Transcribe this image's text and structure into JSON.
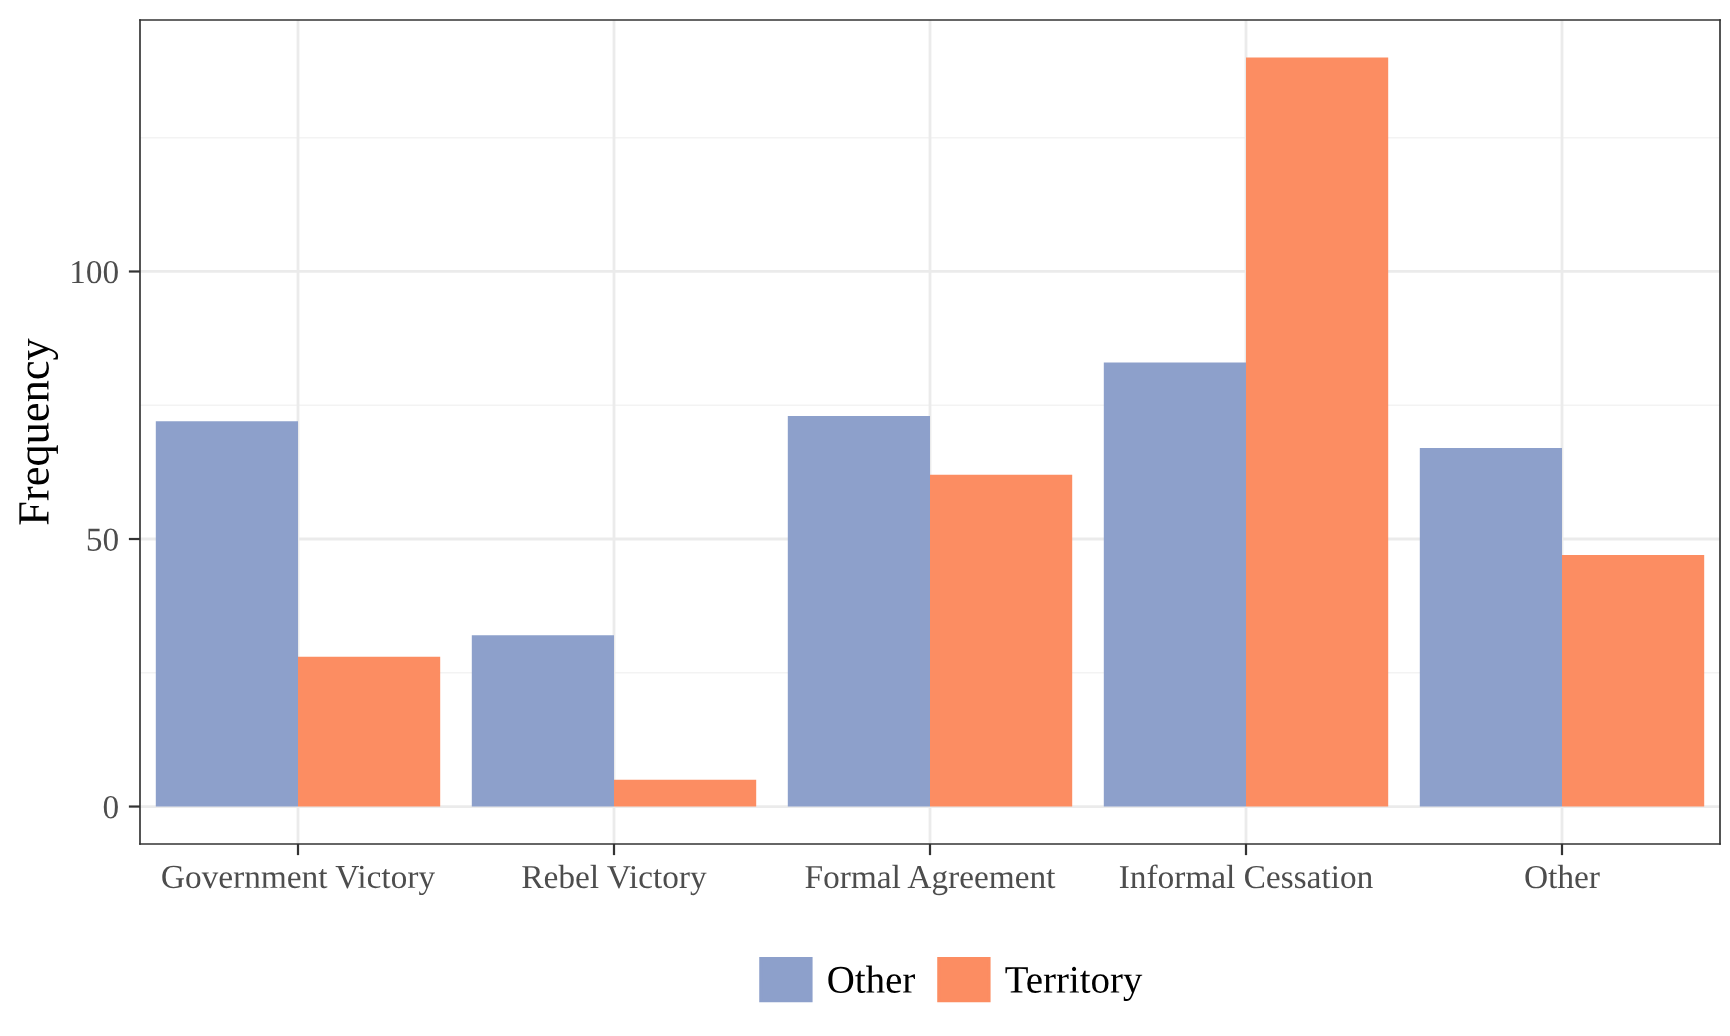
{
  "chart_data": {
    "type": "bar",
    "ylabel": "Frequency",
    "categories": [
      "Government Victory",
      "Rebel Victory",
      "Formal Agreement",
      "Informal Cessation",
      "Other"
    ],
    "series": [
      {
        "name": "Other",
        "color": "#8da0cb",
        "values": [
          72,
          32,
          73,
          83,
          67
        ]
      },
      {
        "name": "Territory",
        "color": "#fc8d62",
        "values": [
          28,
          5,
          62,
          140,
          47
        ]
      }
    ],
    "ylim": [
      -7,
      147
    ],
    "yticks": [
      0,
      50,
      100
    ],
    "grid": true,
    "legend": "bottom"
  }
}
